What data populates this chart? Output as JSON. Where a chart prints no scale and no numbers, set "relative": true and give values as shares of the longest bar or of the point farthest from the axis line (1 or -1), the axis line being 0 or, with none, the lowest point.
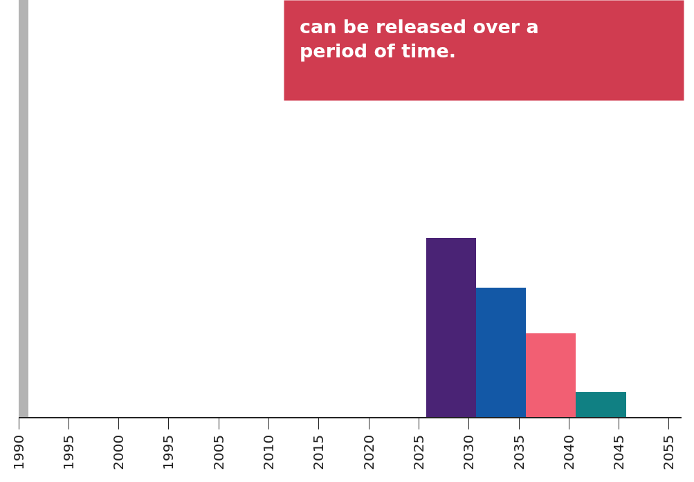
{
  "chart_data": {
    "type": "bar",
    "relative": true,
    "annotations": [
      "can be released over a period of time."
    ],
    "categories": [
      "1990",
      "1995",
      "2000",
      "1995",
      "2005",
      "2010",
      "2015",
      "2020",
      "2025",
      "2030",
      "2035",
      "2040",
      "2045",
      "2055"
    ],
    "values": [
      1,
      null,
      null,
      null,
      null,
      null,
      null,
      null,
      null,
      0.43,
      0.31,
      0.2,
      0.06,
      null
    ],
    "colors": [
      "#b3b3b3",
      null,
      null,
      null,
      null,
      null,
      null,
      null,
      null,
      "#4a2375",
      "#1358a6",
      "#f25f73",
      "#108083",
      null
    ]
  }
}
